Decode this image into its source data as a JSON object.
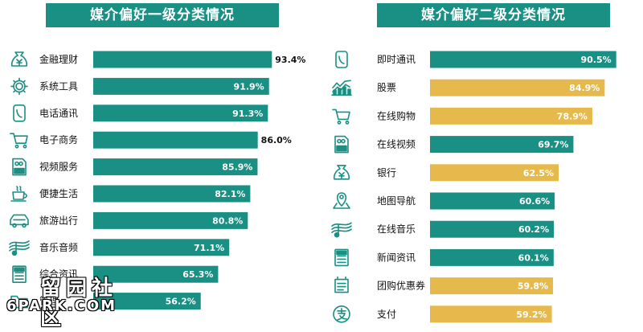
{
  "chart_data": [
    {
      "type": "bar",
      "orientation": "horizontal",
      "title": "媒介偏好一级分类情况",
      "categories": [
        "金融理财",
        "系统工具",
        "电话通讯",
        "电子商务",
        "视频服务",
        "便捷生活",
        "旅游出行",
        "音乐音频",
        "综合资讯",
        "管理"
      ],
      "values": [
        93.4,
        91.9,
        91.3,
        86.0,
        85.9,
        82.1,
        80.8,
        71.1,
        65.3,
        56.2
      ],
      "value_labels": [
        "93.4%",
        "91.9%",
        "91.3%",
        "86.0%",
        "85.9%",
        "82.1%",
        "80.8%",
        "71.1%",
        "65.3%",
        "56.2%"
      ],
      "icons": [
        "money-bag-icon",
        "gear-icon",
        "phone-icon",
        "shopping-cart-icon",
        "video-icon",
        "coffee-cup-icon",
        "car-icon",
        "music-icon",
        "news-icon",
        "folder-icon"
      ],
      "colors": [
        "#1a8f83",
        "#1a8f83",
        "#1a8f83",
        "#1a8f83",
        "#1a8f83",
        "#1a8f83",
        "#1a8f83",
        "#1a8f83",
        "#1a8f83",
        "#1a8f83"
      ]
    },
    {
      "type": "bar",
      "orientation": "horizontal",
      "title": "媒介偏好二级分类情况",
      "categories": [
        "即时通讯",
        "股票",
        "在线购物",
        "在线视频",
        "银行",
        "地图导航",
        "在线音乐",
        "新闻资讯",
        "团购优惠券",
        "支付"
      ],
      "values": [
        90.5,
        84.9,
        78.9,
        69.7,
        62.5,
        60.6,
        60.2,
        60.1,
        59.8,
        59.2
      ],
      "value_labels": [
        "90.5%",
        "84.9%",
        "78.9%",
        "69.7%",
        "62.5%",
        "60.6%",
        "60.2%",
        "60.1%",
        "59.8%",
        "59.2%"
      ],
      "icons": [
        "phone-icon",
        "stock-chart-icon",
        "shopping-cart-icon",
        "video-icon",
        "money-bag-icon",
        "map-pin-icon",
        "music-icon",
        "news-icon",
        "coupon-icon",
        "alipay-icon"
      ],
      "colors": [
        "#1a8f83",
        "#e6b94c",
        "#e6b94c",
        "#1a8f83",
        "#e6b94c",
        "#1a8f83",
        "#1a8f83",
        "#1a8f83",
        "#e6b94c",
        "#e6b94c"
      ]
    }
  ],
  "colors": {
    "teal": "#1a8f83",
    "gold": "#e6b94c"
  },
  "watermark": {
    "cn": "留园社区",
    "en": "6PARK.COM"
  }
}
